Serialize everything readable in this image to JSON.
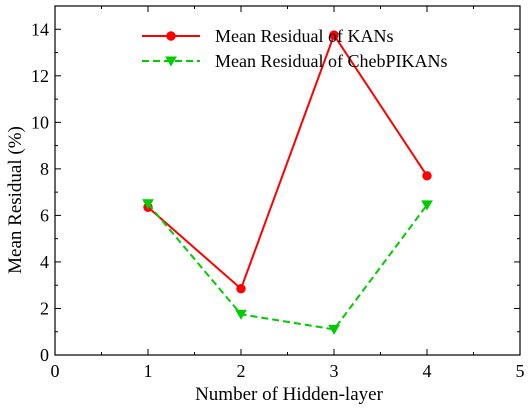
{
  "chart_data": {
    "type": "line",
    "title": "",
    "xlabel": "Number of Hidden-layer",
    "ylabel": "Mean Residual (%)",
    "xlim": [
      0,
      5
    ],
    "ylim": [
      0,
      15
    ],
    "xticks": [
      0,
      1,
      2,
      3,
      4,
      5
    ],
    "yticks": [
      0,
      2,
      4,
      6,
      8,
      10,
      12,
      14
    ],
    "grid": false,
    "legend_position": "top",
    "series": [
      {
        "name": "Mean Residual of KANs",
        "x": [
          1,
          2,
          3,
          4
        ],
        "y": [
          6.35,
          2.85,
          13.75,
          7.7
        ],
        "color": "#ff0000",
        "line_style": "solid",
        "marker": "circle"
      },
      {
        "name": "Mean Residual of ChebPIKANs",
        "x": [
          1,
          2,
          3,
          4
        ],
        "y": [
          6.5,
          1.75,
          1.1,
          6.45
        ],
        "color": "#00cc00",
        "line_style": "dashed",
        "marker": "triangle-down"
      }
    ]
  }
}
